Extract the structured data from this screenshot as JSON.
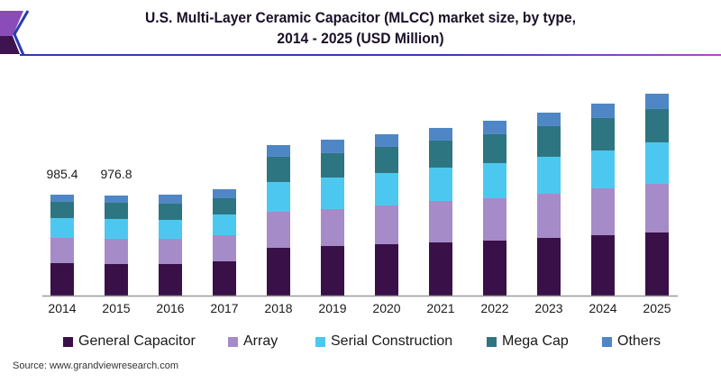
{
  "chart_data": {
    "type": "bar",
    "stacked": true,
    "title": "U.S. Multi-Layer Ceramic Capacitor (MLCC) market size, by type, 2014 - 2025 (USD Million)",
    "title_lines": [
      "U.S. Multi-Layer Ceramic Capacitor (MLCC) market size, by type,",
      "2014 - 2025 (USD Million)"
    ],
    "xlabel": "",
    "ylabel": "",
    "categories": [
      "2014",
      "2015",
      "2016",
      "2017",
      "2018",
      "2019",
      "2020",
      "2021",
      "2022",
      "2023",
      "2024",
      "2025"
    ],
    "series": [
      {
        "name": "General Capacitor",
        "color": "#3a1048",
        "values": [
          316.8,
          308.0,
          308.0,
          334.4,
          466.4,
          484.0,
          501.6,
          519.2,
          536.8,
          563.2,
          589.6,
          616.0
        ]
      },
      {
        "name": "Array",
        "color": "#a58bc7",
        "values": [
          246.4,
          246.4,
          246.4,
          255.2,
          352.0,
          360.8,
          378.4,
          404.8,
          413.6,
          431.2,
          457.6,
          475.2
        ]
      },
      {
        "name": "Serial Construction",
        "color": "#4cc8f0",
        "values": [
          193.6,
          193.6,
          184.8,
          202.4,
          290.4,
          308.0,
          316.8,
          325.6,
          343.2,
          360.8,
          369.6,
          404.8
        ]
      },
      {
        "name": "Mega Cap",
        "color": "#2d7580",
        "values": [
          158.4,
          158.4,
          158.4,
          158.4,
          246.4,
          237.6,
          255.2,
          264.0,
          281.6,
          299.2,
          316.8,
          325.6
        ]
      },
      {
        "name": "Others",
        "color": "#4f86c6",
        "values": [
          70.2,
          70.4,
          88.0,
          88.0,
          114.4,
          132.0,
          123.2,
          123.2,
          132.0,
          132.0,
          140.8,
          149.6
        ]
      }
    ],
    "annotations": [
      {
        "category": "2014",
        "text": "985.4"
      },
      {
        "category": "2015",
        "text": "976.8"
      }
    ],
    "ylim": [
      0,
      2000
    ],
    "grid": false,
    "legend": "bottom",
    "axis_color": "#9a9a9a"
  },
  "source": "Source: www.grandviewresearch.com",
  "brand_colors": {
    "logo_purple": "#7b3fa0",
    "logo_dark": "#3d1350",
    "rule_blue": "#2a3cb0",
    "rule_purple": "#9b3fb8"
  }
}
